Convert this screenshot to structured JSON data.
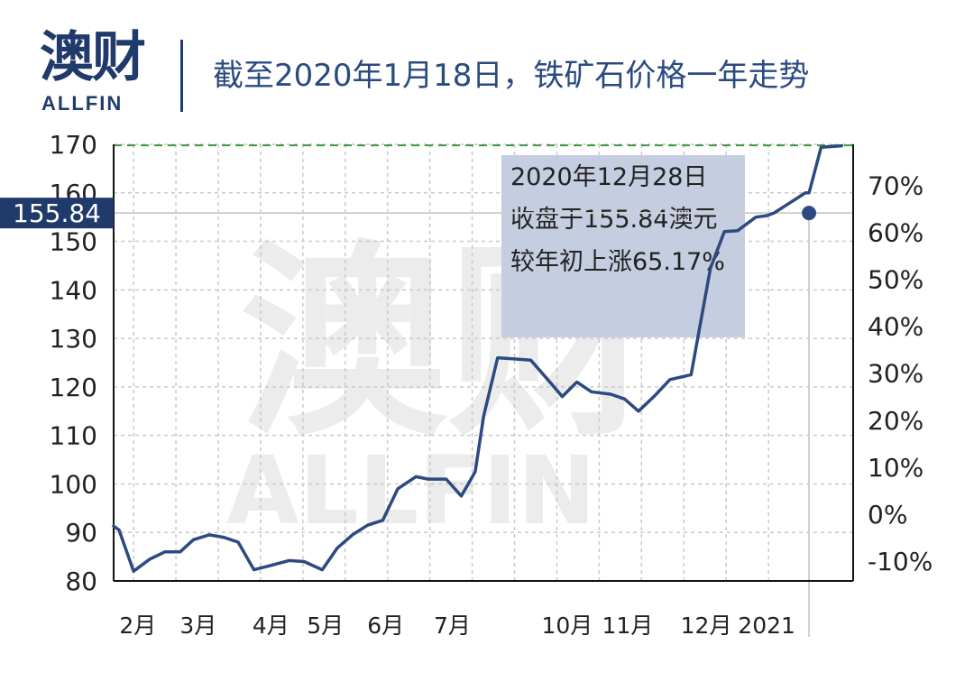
{
  "header": {
    "logo_cn": "澳财",
    "logo_en": "ALLFIN",
    "title": "截至2020年1月18日，铁矿石价格一年走势"
  },
  "watermark": {
    "cn": "澳财",
    "en": "ALLFIN"
  },
  "colors": {
    "line": "#2d4a80",
    "annotation_fill": "#c5cde0",
    "reference_dashed": "#3e9a3e",
    "current_label_bg": "#1f3a6b"
  },
  "chart_data": {
    "type": "line",
    "title": "截至2020年1月18日，铁矿石价格一年走势",
    "xlabel": "",
    "ylabel": "",
    "ylim": [
      80,
      170
    ],
    "y_ticks": [
      80,
      90,
      100,
      110,
      120,
      130,
      140,
      150,
      160,
      170
    ],
    "y2_ticks": [
      "-10%",
      "0%",
      "10%",
      "20%",
      "30%",
      "40%",
      "50%",
      "60%",
      "70%"
    ],
    "y2_values": [
      -10,
      0,
      10,
      20,
      30,
      40,
      50,
      60,
      70
    ],
    "y2_ylim": [
      -14.2,
      78.7
    ],
    "xlim": [
      0,
      12.23
    ],
    "x_ticks": [
      {
        "label": "2月",
        "x": 0.4
      },
      {
        "label": "3月",
        "x": 1.4
      },
      {
        "label": "4月",
        "x": 2.6
      },
      {
        "label": "5月",
        "x": 3.5
      },
      {
        "label": "6月",
        "x": 4.5
      },
      {
        "label": "7月",
        "x": 5.6
      },
      {
        "label": "10月",
        "x": 7.5
      },
      {
        "label": "11月",
        "x": 8.5
      },
      {
        "label": "12月",
        "x": 9.8
      },
      {
        "label": "2021",
        "x": 10.8
      }
    ],
    "grid": true,
    "reference_line": 169.8,
    "current_value_label": "155.84",
    "highlight_point": {
      "x": 11.5,
      "y": 155.84
    },
    "annotation": {
      "lines": [
        "2020年12月28日",
        "收盘于155.84澳元",
        "较年初上涨65.17%"
      ]
    },
    "series": [
      {
        "x": [
          0,
          0.09,
          0.33,
          0.6,
          0.85,
          1.1,
          1.32,
          1.58,
          1.82,
          2.06,
          2.32,
          2.6,
          2.9,
          3.15,
          3.45,
          3.7,
          3.95,
          4.2,
          4.45,
          4.7,
          5.0,
          5.2,
          5.5,
          5.75,
          5.98,
          6.12,
          6.35,
          6.6,
          6.9,
          7.18,
          7.42,
          7.66,
          7.9,
          8.22,
          8.45,
          8.68,
          8.95,
          9.2,
          9.55,
          9.87,
          10.1,
          10.32,
          10.62,
          10.8,
          10.92,
          11.13,
          11.44,
          11.5,
          11.7,
          12.04
        ],
        "y": [
          91.3,
          90.5,
          82.0,
          84.5,
          86.0,
          86.0,
          88.5,
          89.5,
          89.0,
          88.0,
          82.3,
          83.2,
          84.2,
          84.0,
          82.3,
          86.8,
          89.5,
          91.5,
          92.5,
          99.0,
          101.5,
          101.0,
          101.0,
          97.5,
          102.5,
          114.0,
          126.0,
          125.8,
          125.5,
          121.5,
          118.0,
          121.0,
          119.0,
          118.5,
          117.5,
          115.0,
          118.2,
          121.5,
          122.5,
          144.5,
          152.0,
          152.2,
          155.0,
          155.3,
          155.84,
          157.5,
          160.0,
          160.0,
          169.4,
          169.7
        ]
      }
    ]
  }
}
